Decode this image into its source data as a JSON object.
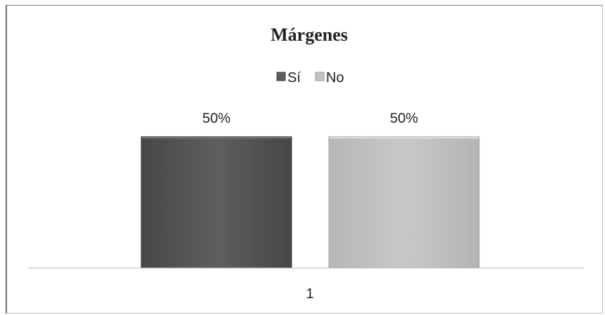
{
  "chart_data": {
    "type": "bar",
    "title": "Márgenes",
    "categories": [
      "1"
    ],
    "series": [
      {
        "name": "Sí",
        "values": [
          50
        ],
        "color": "#5c5c5c",
        "label": "50%"
      },
      {
        "name": "No",
        "values": [
          50
        ],
        "color": "#c4c4c4",
        "label": "50%"
      }
    ],
    "ylim": [
      0,
      70
    ],
    "legend_position": "top",
    "grid": false,
    "y_axis_visible": false
  }
}
